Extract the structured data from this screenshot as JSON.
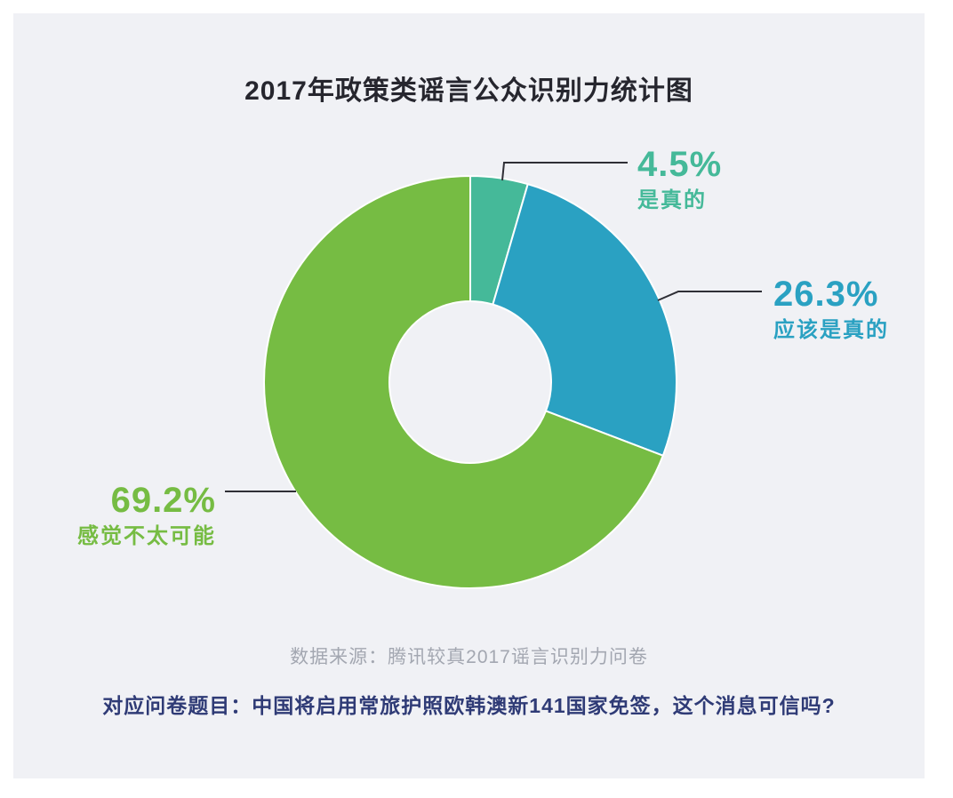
{
  "title": "2017年政策类谣言公众识别力统计图",
  "source_note": "数据来源：腾讯较真2017谣言识别力问卷",
  "question_note": "对应问卷题目：中国将启用常旅护照欧韩澳新141国家免签，这个消息可信吗?",
  "chart_data": {
    "type": "pie",
    "subtype": "donut",
    "title": "2017年政策类谣言公众识别力统计图",
    "categories": [
      "是真的",
      "应该是真的",
      "感觉不太可能"
    ],
    "values": [
      4.5,
      26.3,
      69.2
    ],
    "unit": "%",
    "colors": [
      "#45B999",
      "#2AA1C2",
      "#76BC43"
    ],
    "start_angle_deg": 0,
    "direction": "clockwise",
    "labels": [
      {
        "pct": "4.5%",
        "name": "是真的"
      },
      {
        "pct": "26.3%",
        "name": "应该是真的"
      },
      {
        "pct": "69.2%",
        "name": "感觉不太可能"
      }
    ],
    "background_color": "#F0F1F5",
    "legend": "none",
    "leader_line_color": "#2F2F36"
  }
}
